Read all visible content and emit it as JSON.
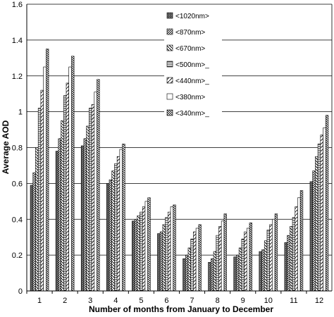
{
  "chart_data": {
    "type": "bar",
    "title": "",
    "xlabel": "Number of months from January to December",
    "ylabel": "Average AOD",
    "ylim": [
      0,
      1.6
    ],
    "yticks": [
      "0",
      "0.2",
      "0.4",
      "0.6",
      "0.8",
      "1",
      "1.2",
      "1.4",
      "1.6"
    ],
    "grid": true,
    "legend_position": "top-center",
    "categories": [
      "1",
      "2",
      "3",
      "4",
      "5",
      "6",
      "7",
      "8",
      "9",
      "10",
      "11",
      "12"
    ],
    "series": [
      {
        "name": "<1020nm>",
        "pattern": "solid-dark",
        "values": [
          0.59,
          0.78,
          0.81,
          0.6,
          0.39,
          0.32,
          0.18,
          0.16,
          0.19,
          0.22,
          0.27,
          0.61
        ]
      },
      {
        "name": "<870nm>",
        "pattern": "diag-right-dense",
        "values": [
          0.66,
          0.85,
          0.85,
          0.62,
          0.4,
          0.33,
          0.2,
          0.18,
          0.2,
          0.23,
          0.31,
          0.67
        ]
      },
      {
        "name": "<670nm>",
        "pattern": "diag-left",
        "values": [
          0.8,
          0.95,
          0.92,
          0.67,
          0.42,
          0.37,
          0.24,
          0.22,
          0.24,
          0.28,
          0.36,
          0.75
        ]
      },
      {
        "name": "<500nm>_",
        "pattern": "horizontal",
        "values": [
          1.02,
          1.09,
          1.02,
          0.71,
          0.44,
          0.41,
          0.29,
          0.31,
          0.29,
          0.34,
          0.41,
          0.82
        ]
      },
      {
        "name": "<440nm>_",
        "pattern": "diag-right",
        "values": [
          1.12,
          1.16,
          1.04,
          0.75,
          0.47,
          0.44,
          0.33,
          0.36,
          0.33,
          0.37,
          0.47,
          0.87
        ]
      },
      {
        "name": "<380nm>",
        "pattern": "open",
        "values": [
          1.25,
          1.25,
          1.11,
          0.79,
          0.5,
          0.47,
          0.35,
          0.39,
          0.35,
          0.4,
          0.52,
          0.91
        ]
      },
      {
        "name": "<340nm>_",
        "pattern": "diag-left-dense",
        "values": [
          1.35,
          1.31,
          1.18,
          0.82,
          0.52,
          0.48,
          0.37,
          0.43,
          0.38,
          0.43,
          0.56,
          0.98
        ]
      }
    ]
  }
}
